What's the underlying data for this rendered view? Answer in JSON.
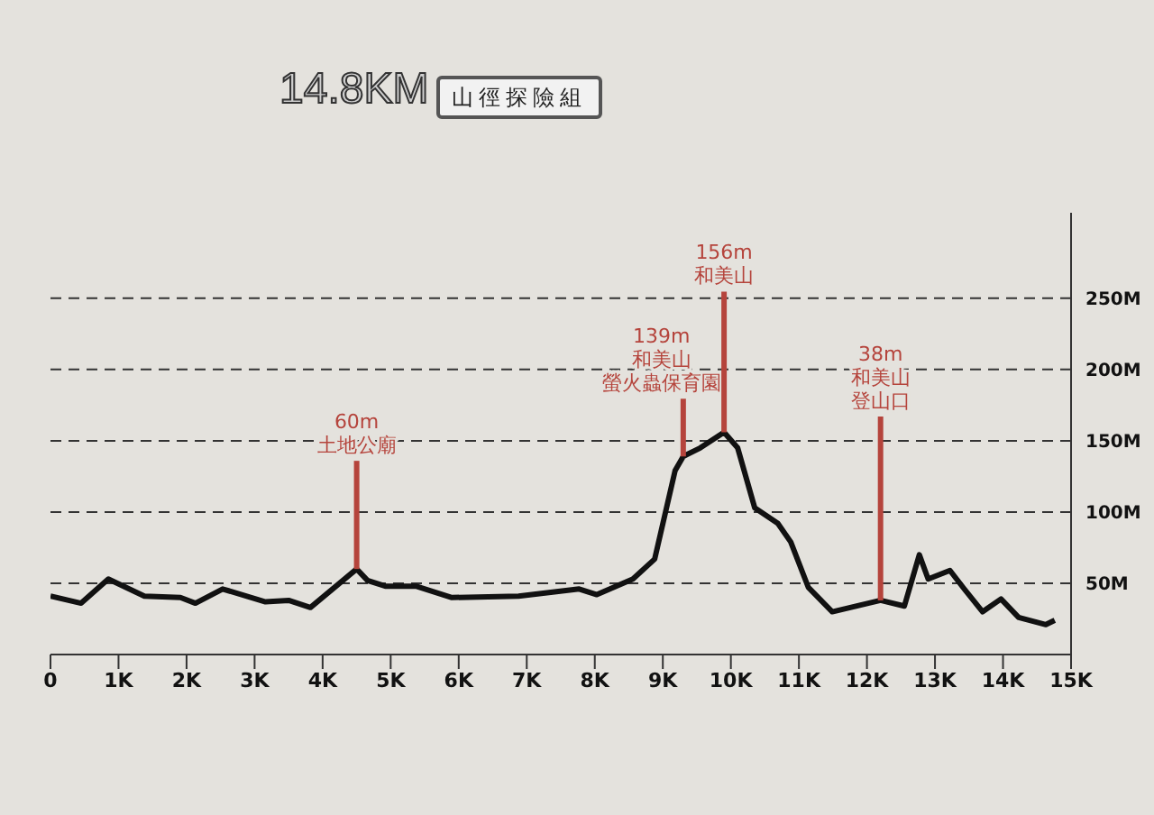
{
  "chart_data": {
    "type": "line",
    "title": "14.8KM",
    "subtitle": "山徑探險組",
    "x": [
      0,
      0.45,
      0.85,
      1.38,
      1.91,
      2.13,
      2.53,
      3.16,
      3.5,
      3.82,
      4.5,
      4.66,
      4.92,
      5.37,
      5.9,
      6.88,
      7.77,
      8.03,
      8.56,
      8.88,
      9.18,
      9.3,
      9.55,
      9.9,
      10.1,
      10.35,
      10.69,
      10.88,
      11.14,
      11.49,
      12.2,
      12.55,
      12.77,
      12.9,
      13.22,
      13.43,
      13.7,
      13.97,
      14.23,
      14.63,
      14.76
    ],
    "series": [
      {
        "color": "#111111",
        "values": [
          41,
          36,
          53,
          41,
          40,
          36,
          46,
          37,
          38,
          33,
          60,
          52,
          48,
          48,
          40,
          41,
          46,
          42,
          53,
          67,
          129,
          139,
          145,
          156,
          145,
          103,
          92,
          79,
          47,
          30,
          38,
          34,
          70,
          53,
          59,
          46,
          30,
          39,
          26,
          21,
          24
        ]
      }
    ],
    "xlim": [
      0,
      15
    ],
    "xticks": [
      0,
      {
        "value": 1,
        "label": "1K"
      },
      {
        "value": 2,
        "label": "2K"
      },
      {
        "value": 3,
        "label": "3K"
      },
      {
        "value": 4,
        "label": "4K"
      },
      {
        "value": 5,
        "label": "5K"
      },
      {
        "value": 6,
        "label": "6K"
      },
      {
        "value": 7,
        "label": "7K"
      },
      {
        "value": 8,
        "label": "8K"
      },
      {
        "value": 9,
        "label": "9K"
      },
      {
        "value": 10,
        "label": "10K"
      },
      {
        "value": 11,
        "label": "11K"
      },
      {
        "value": 12,
        "label": "12K"
      },
      {
        "value": 13,
        "label": "13K"
      },
      {
        "value": 14,
        "label": "14K"
      },
      {
        "value": 15,
        "label": "15K"
      }
    ],
    "ylim": [
      0,
      310
    ],
    "yticks": [
      {
        "value": 50,
        "label": "50M"
      },
      {
        "value": 100,
        "label": "100M"
      },
      {
        "value": 150,
        "label": "150M"
      },
      {
        "value": 200,
        "label": "200M"
      },
      {
        "value": 250,
        "label": "250M"
      }
    ],
    "grid": "y",
    "legend": false,
    "marker": "none",
    "line_style": "solid",
    "annotations": [
      {
        "text": "60m\n土地公廟",
        "x": 4.5,
        "y": 60
      },
      {
        "text": "139m\n和美山螢火蟲保育園",
        "x": 9.3,
        "y": 139
      },
      {
        "text": "156m\n和美山",
        "x": 9.9,
        "y": 156
      },
      {
        "text": "38m\n和美山登山口",
        "x": 12.2,
        "y": 38
      }
    ]
  }
}
